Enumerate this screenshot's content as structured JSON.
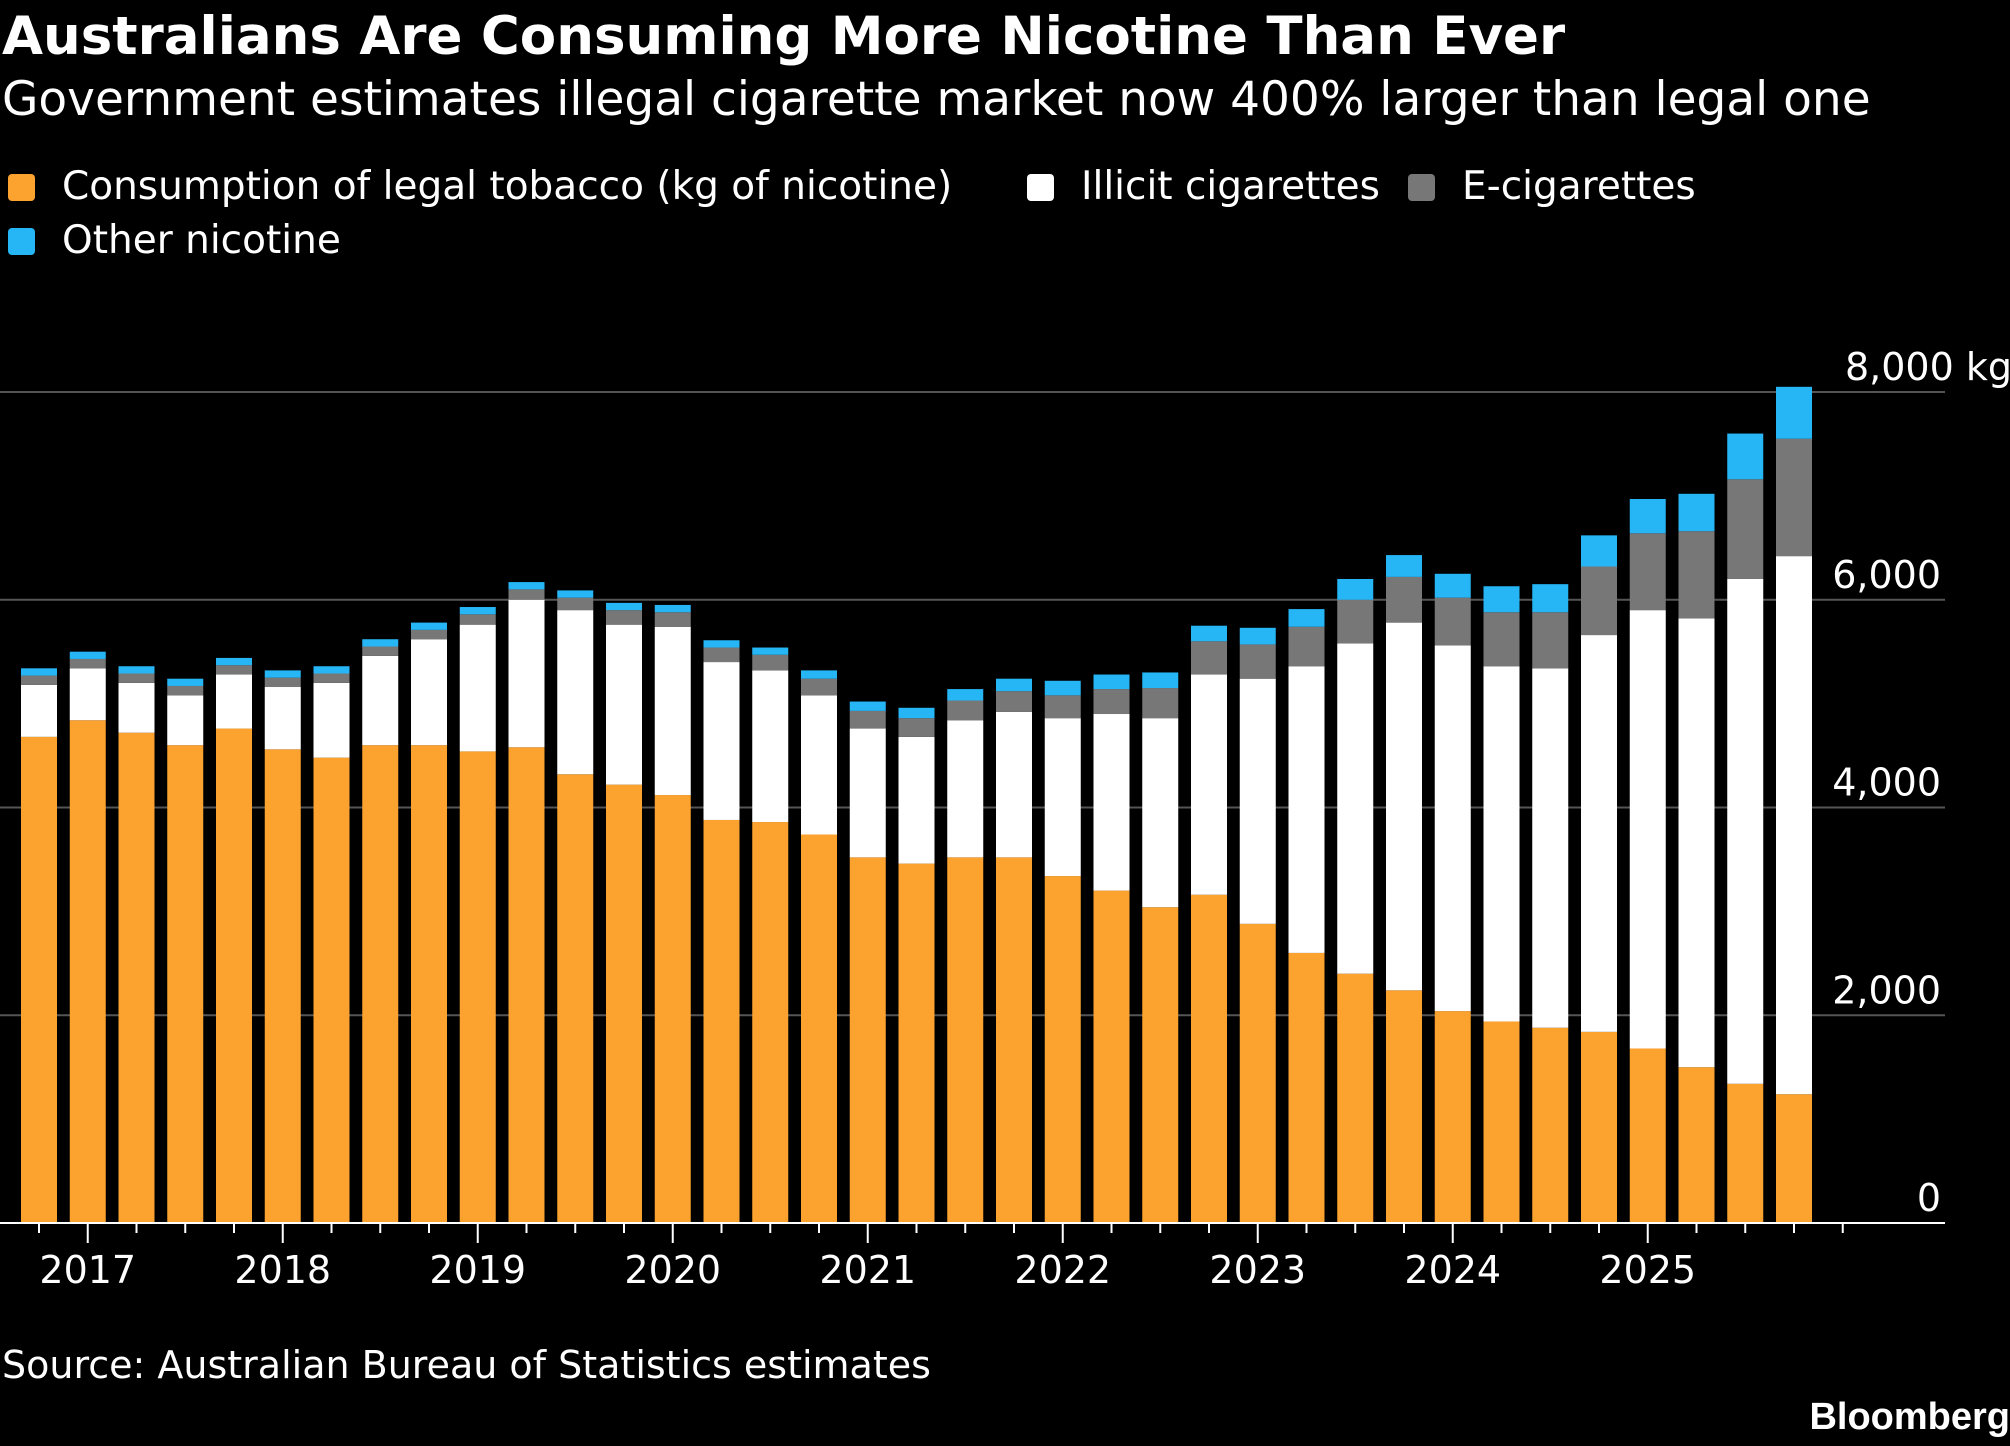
{
  "header": {
    "title": "Australians Are Consuming More Nicotine Than Ever",
    "subtitle": "Government estimates illegal cigarette market now 400% larger than legal one"
  },
  "footer": {
    "source": "Source: Australian Bureau of Statistics estimates",
    "brand": "Bloomberg"
  },
  "colors": {
    "background": "#000000",
    "legal": "#fca22f",
    "illicit": "#ffffff",
    "ecig": "#777777",
    "other": "#26b6f6",
    "grid": "#555555",
    "text": "#ffffff"
  },
  "chart_data": {
    "type": "bar",
    "stacked": true,
    "categories": [
      "2016 Q4",
      "2017 Q1",
      "2017 Q2",
      "2017 Q3",
      "2017 Q4",
      "2018 Q1",
      "2018 Q2",
      "2018 Q3",
      "2018 Q4",
      "2019 Q1",
      "2019 Q2",
      "2019 Q3",
      "2019 Q4",
      "2020 Q1",
      "2020 Q2",
      "2020 Q3",
      "2020 Q4",
      "2021 Q1",
      "2021 Q2",
      "2021 Q3",
      "2021 Q4",
      "2022 Q1",
      "2022 Q2",
      "2022 Q3",
      "2022 Q4",
      "2023 Q1",
      "2023 Q2",
      "2023 Q3",
      "2023 Q4",
      "2024 Q1",
      "2024 Q2",
      "2024 Q3",
      "2024 Q4",
      "2025 Q1",
      "2025 Q2",
      "2025 Q3",
      "2025 Q4"
    ],
    "x_tick_labels": [
      "2017",
      "2018",
      "2019",
      "2020",
      "2021",
      "2022",
      "2023",
      "2024",
      "2025"
    ],
    "x_tick_label_category_index": [
      1,
      5,
      9,
      13,
      17,
      21,
      25,
      29,
      33
    ],
    "series": [
      {
        "name": "Consumption of legal tobacco (kg of nicotine)",
        "color": "#fca22f",
        "values": [
          4680,
          4840,
          4720,
          4600,
          4760,
          4560,
          4480,
          4600,
          4600,
          4540,
          4580,
          4320,
          4220,
          4120,
          3880,
          3860,
          3740,
          3520,
          3460,
          3520,
          3520,
          3340,
          3200,
          3040,
          3160,
          2880,
          2600,
          2400,
          2240,
          2040,
          1940,
          1880,
          1840,
          1680,
          1500,
          1340,
          1240
        ]
      },
      {
        "name": "Illicit cigarettes",
        "color": "#ffffff",
        "values": [
          500,
          500,
          480,
          480,
          520,
          600,
          720,
          860,
          1020,
          1220,
          1420,
          1580,
          1540,
          1620,
          1520,
          1460,
          1340,
          1240,
          1220,
          1320,
          1400,
          1520,
          1700,
          1820,
          2120,
          2360,
          2760,
          3180,
          3540,
          3520,
          3420,
          3460,
          3820,
          4220,
          4320,
          4860,
          5180
        ]
      },
      {
        "name": "E-cigarettes",
        "color": "#777777",
        "values": [
          90,
          90,
          90,
          90,
          90,
          90,
          90,
          90,
          90,
          100,
          100,
          120,
          140,
          140,
          140,
          150,
          160,
          170,
          180,
          190,
          200,
          220,
          240,
          290,
          320,
          330,
          380,
          420,
          440,
          460,
          520,
          540,
          660,
          740,
          840,
          960,
          1130
        ]
      },
      {
        "name": "Other nicotine",
        "color": "#26b6f6",
        "values": [
          70,
          70,
          70,
          70,
          70,
          70,
          70,
          70,
          70,
          70,
          70,
          70,
          70,
          70,
          70,
          70,
          80,
          90,
          100,
          110,
          120,
          140,
          140,
          150,
          150,
          160,
          170,
          200,
          210,
          230,
          250,
          270,
          300,
          330,
          360,
          440,
          500
        ]
      }
    ],
    "y_ticks": [
      0,
      2000,
      4000,
      6000,
      8000
    ],
    "y_tick_labels": [
      "0",
      "2,000",
      "4,000",
      "6,000",
      "8,000 kg"
    ],
    "ylim": [
      0,
      8000
    ],
    "yaxis_side": "right",
    "grid": true,
    "legend_position": "top-left"
  }
}
